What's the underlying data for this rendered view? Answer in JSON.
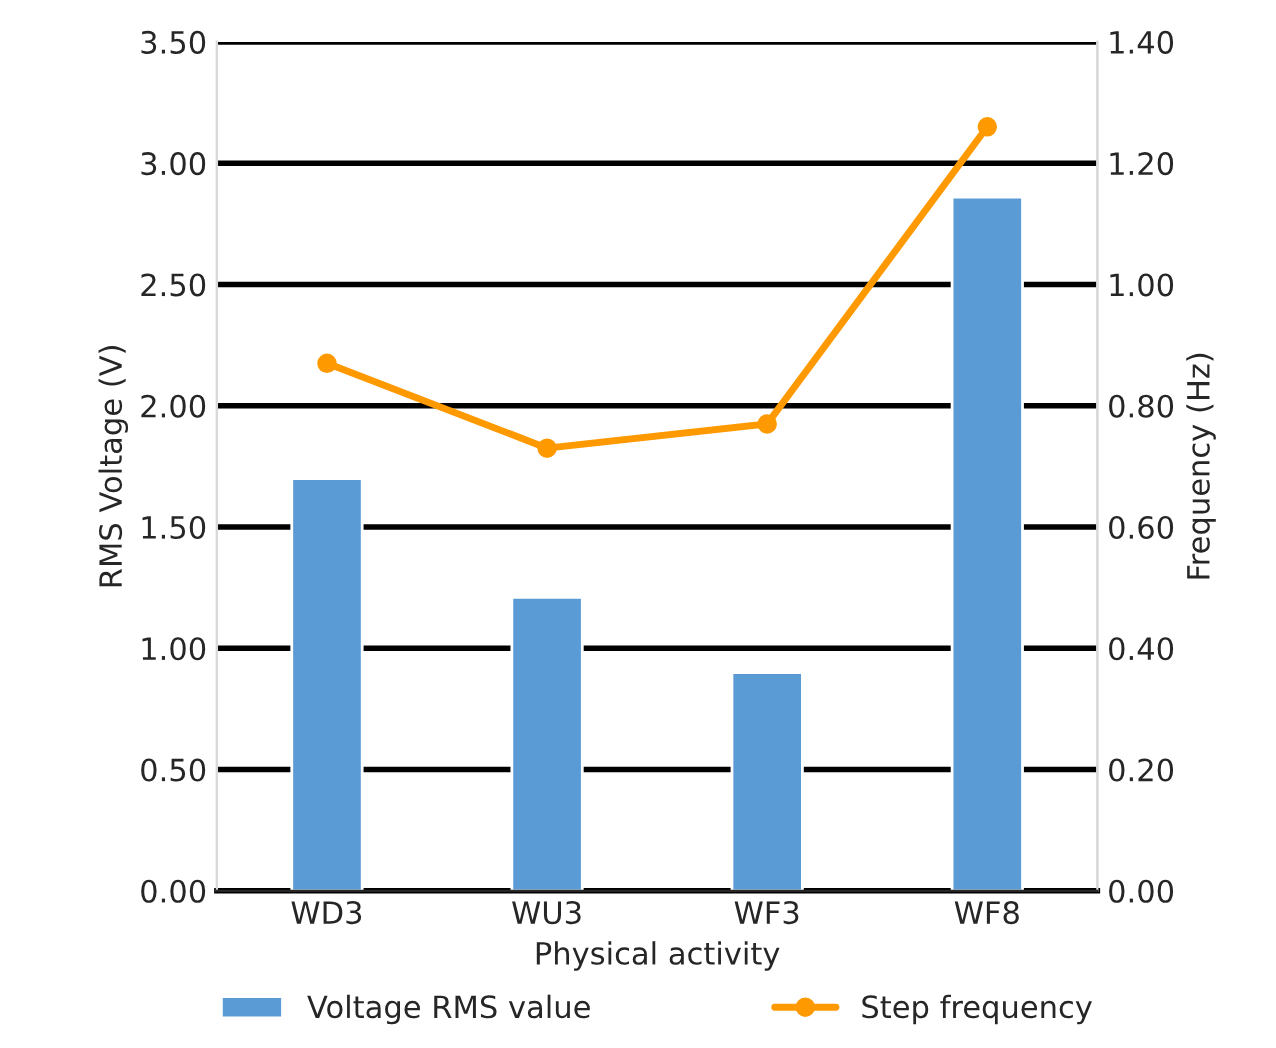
{
  "chart_data": {
    "type": "bar",
    "xlabel": "Physical activity",
    "ylabel": "RMS Voltage (V)",
    "y2label": "Frequency (Hz)",
    "categories": [
      "WD3",
      "WU3",
      "WF3",
      "WF8"
    ],
    "series": [
      {
        "name": "Voltage RMS value",
        "color": "#5b9bd5",
        "values": [
          1.7,
          1.21,
          0.9,
          2.86
        ]
      },
      {
        "name": "Step frequency",
        "type": "line",
        "axis": "y2",
        "color": "#ff9900",
        "marker": "circle",
        "values": [
          0.87,
          0.73,
          0.77,
          1.26
        ]
      }
    ],
    "ylim": [
      0,
      3.5
    ],
    "yticks": [
      {
        "value": 0,
        "label": "0.00"
      },
      {
        "value": 0.5,
        "label": "0.50"
      },
      {
        "value": 1,
        "label": "1.00"
      },
      {
        "value": 1.5,
        "label": "1.50"
      },
      {
        "value": 2,
        "label": "2.00"
      },
      {
        "value": 2.5,
        "label": "2.50"
      },
      {
        "value": 3,
        "label": "3.00"
      },
      {
        "value": 3.5,
        "label": "3.50"
      }
    ],
    "y2lim": [
      0,
      1.4
    ],
    "y2ticks": [
      {
        "value": 0,
        "label": "0.00"
      },
      {
        "value": 0.2,
        "label": "0.20"
      },
      {
        "value": 0.4,
        "label": "0.40"
      },
      {
        "value": 0.6,
        "label": "0.60"
      },
      {
        "value": 0.8,
        "label": "0.80"
      },
      {
        "value": 1,
        "label": "1.00"
      },
      {
        "value": 1.2,
        "label": "1.20"
      },
      {
        "value": 1.4,
        "label": "1.40"
      }
    ],
    "grid": "y",
    "legend": "bottom"
  }
}
